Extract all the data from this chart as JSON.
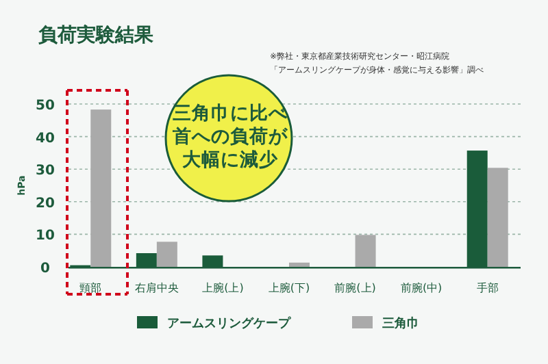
{
  "chart_data": {
    "type": "bar",
    "title": "負荷実験結果",
    "ylabel": "hPa",
    "annotations": [
      "三角巾に比べ首への負荷が大幅に減少",
      "※弊社・東京都産業技術研究センター・昭江病院",
      "「アームスリングケープが身体・感覚に与える影響」調べ"
    ],
    "categories": [
      "頸部",
      "右肩中央",
      "上腕(上)",
      "上腕(下)",
      "前腕(上)",
      "前腕(中)",
      "手部"
    ],
    "series": [
      {
        "name": "アームスリングケープ",
        "color": "#1a5c3a",
        "values": [
          0.5,
          4.2,
          3.5,
          0,
          0,
          0,
          35.7
        ]
      },
      {
        "name": "三角巾",
        "color": "#aaaaaa",
        "values": [
          48.3,
          7.7,
          0,
          1.3,
          9.8,
          0,
          30.4
        ]
      }
    ],
    "ylim": [
      0,
      50
    ],
    "yticks": [
      0,
      10,
      20,
      30,
      40,
      50
    ],
    "grid": "y",
    "legend": "bottom"
  }
}
